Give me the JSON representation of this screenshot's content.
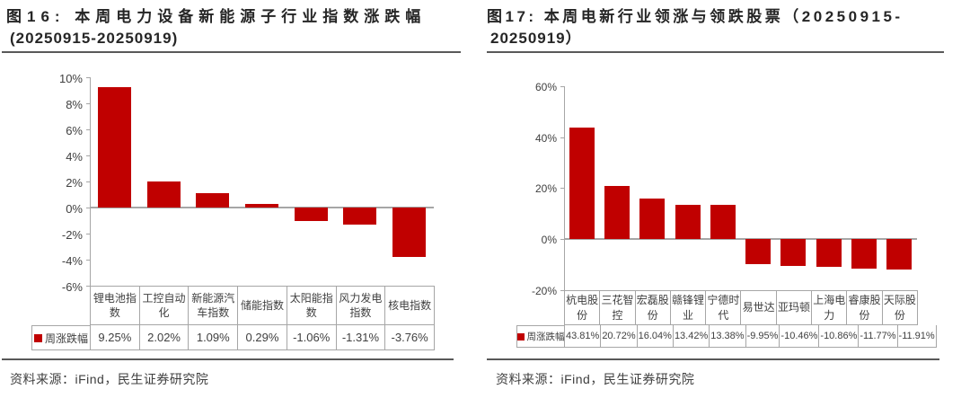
{
  "colors": {
    "bar": "#c00000",
    "legend_square": "#c00000",
    "axis_line": "#a6a6a6",
    "table_border": "#a6a6a6",
    "title_text": "#262626",
    "rule": "#595959"
  },
  "chart_data": [
    {
      "id": "fig16",
      "type": "bar",
      "title_line1": "图16: 本周电力设备新能源子行业指数涨跌幅",
      "title_line2": "(20250915-20250919)",
      "categories": [
        "锂电池指数",
        "工控自动化",
        "新能源汽车指数",
        "储能指数",
        "太阳能指数",
        "风力发电指数",
        "核电指数"
      ],
      "series": [
        {
          "name": "周涨跌幅",
          "values": [
            9.25,
            2.02,
            1.09,
            0.29,
            -1.06,
            -1.31,
            -3.76
          ]
        }
      ],
      "value_labels": [
        "9.25%",
        "2.02%",
        "1.09%",
        "0.29%",
        "-1.06%",
        "-1.31%",
        "-3.76%"
      ],
      "ylim": [
        -6,
        10
      ],
      "ytick_labels": [
        "10%",
        "8%",
        "6%",
        "4%",
        "2%",
        "0%",
        "-2%",
        "-4%",
        "-6%"
      ],
      "ytick_values": [
        10,
        8,
        6,
        4,
        2,
        0,
        -2,
        -4,
        -6
      ],
      "grid": false,
      "legend_position": "table-left",
      "source": "资料来源：iFind，民生证券研究院"
    },
    {
      "id": "fig17",
      "type": "bar",
      "title_line1": "图17: 本周电新行业领涨与领跌股票（20250915-",
      "title_line2": "20250919）",
      "categories": [
        "杭电股份",
        "三花智控",
        "宏磊股份",
        "赣锋锂业",
        "宁德时代",
        "易世达",
        "亚玛顿",
        "上海电力",
        "睿康股份",
        "天际股份"
      ],
      "series": [
        {
          "name": "周涨跌幅",
          "values": [
            43.81,
            20.72,
            16.04,
            13.42,
            13.38,
            -9.95,
            -10.46,
            -10.86,
            -11.77,
            -11.91
          ]
        }
      ],
      "value_labels": [
        "43.81%",
        "20.72%",
        "16.04%",
        "13.42%",
        "13.38%",
        "-9.95%",
        "-10.46%",
        "-10.86%",
        "-11.77%",
        "-11.91%"
      ],
      "ylim": [
        -20,
        60
      ],
      "ytick_labels": [
        "60%",
        "40%",
        "20%",
        "0%",
        "-20%"
      ],
      "ytick_values": [
        60,
        40,
        20,
        0,
        -20
      ],
      "grid": false,
      "legend_position": "table-left",
      "source": "资料来源：iFind，民生证券研究院"
    }
  ]
}
